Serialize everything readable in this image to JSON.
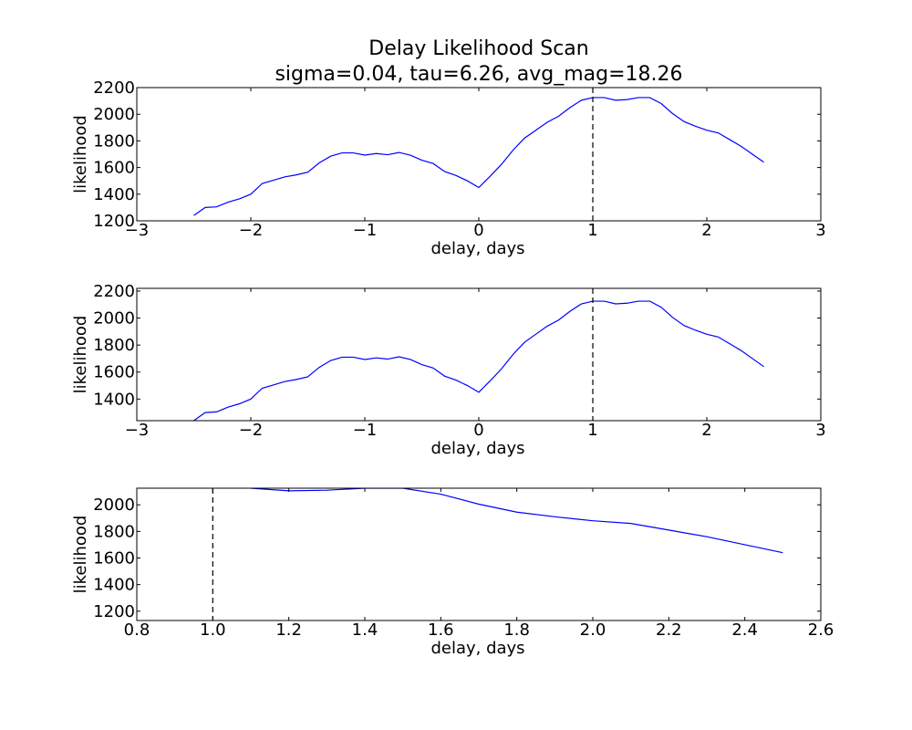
{
  "chart_data": [
    {
      "type": "line",
      "title": "Delay Likelihood Scan",
      "subtitle": "sigma=0.04, tau=6.26, avg_mag=18.26",
      "xlabel": "delay, days",
      "ylabel": "likelihood",
      "xlim": [
        -3,
        3
      ],
      "ylim": [
        1200,
        2200
      ],
      "xticks": [
        -3,
        -2,
        -1,
        0,
        1,
        2,
        3
      ],
      "yticks": [
        1200,
        1400,
        1600,
        1800,
        2000,
        2200
      ],
      "xtick_labels": [
        "−3",
        "−2",
        "−1",
        "0",
        "1",
        "2",
        "3"
      ],
      "ytick_labels": [
        "1200",
        "1400",
        "1600",
        "1800",
        "2000",
        "2200"
      ],
      "marker_x": 1.0,
      "grid": false,
      "series": [
        {
          "color": "#0000ff",
          "x": [
            -2.5,
            -2.4,
            -2.3,
            -2.2,
            -2.1,
            -2.0,
            -1.9,
            -1.8,
            -1.7,
            -1.6,
            -1.5,
            -1.4,
            -1.3,
            -1.2,
            -1.1,
            -1.0,
            -0.9,
            -0.8,
            -0.7,
            -0.6,
            -0.5,
            -0.4,
            -0.3,
            -0.2,
            -0.1,
            0.0,
            0.1,
            0.2,
            0.3,
            0.4,
            0.5,
            0.6,
            0.7,
            0.8,
            0.9,
            1.0,
            1.1,
            1.2,
            1.3,
            1.4,
            1.5,
            1.6,
            1.7,
            1.8,
            1.9,
            2.0,
            2.1,
            2.2,
            2.3,
            2.4,
            2.5
          ],
          "y": [
            1240,
            1300,
            1305,
            1340,
            1365,
            1400,
            1480,
            1505,
            1530,
            1545,
            1565,
            1635,
            1685,
            1710,
            1710,
            1693,
            1705,
            1696,
            1713,
            1693,
            1655,
            1630,
            1570,
            1540,
            1500,
            1450,
            1535,
            1625,
            1730,
            1820,
            1880,
            1940,
            1985,
            2050,
            2105,
            2125,
            2125,
            2105,
            2110,
            2125,
            2125,
            2080,
            2005,
            1945,
            1910,
            1880,
            1860,
            1810,
            1760,
            1700,
            1640
          ]
        }
      ]
    },
    {
      "type": "line",
      "title": "",
      "xlabel": "delay, days",
      "ylabel": "likelihood",
      "xlim": [
        -3,
        3
      ],
      "ylim": [
        1240,
        2220
      ],
      "xticks": [
        -3,
        -2,
        -1,
        0,
        1,
        2,
        3
      ],
      "yticks": [
        1400,
        1600,
        1800,
        2000,
        2200
      ],
      "xtick_labels": [
        "−3",
        "−2",
        "−1",
        "0",
        "1",
        "2",
        "3"
      ],
      "ytick_labels": [
        "1400",
        "1600",
        "1800",
        "2000",
        "2200"
      ],
      "marker_x": 1.0,
      "grid": false,
      "series": [
        {
          "color": "#0000ff",
          "x": [
            -2.5,
            -2.4,
            -2.3,
            -2.2,
            -2.1,
            -2.0,
            -1.9,
            -1.8,
            -1.7,
            -1.6,
            -1.5,
            -1.4,
            -1.3,
            -1.2,
            -1.1,
            -1.0,
            -0.9,
            -0.8,
            -0.7,
            -0.6,
            -0.5,
            -0.4,
            -0.3,
            -0.2,
            -0.1,
            0.0,
            0.1,
            0.2,
            0.3,
            0.4,
            0.5,
            0.6,
            0.7,
            0.8,
            0.9,
            1.0,
            1.1,
            1.2,
            1.3,
            1.4,
            1.5,
            1.6,
            1.7,
            1.8,
            1.9,
            2.0,
            2.1,
            2.2,
            2.3,
            2.4,
            2.5
          ],
          "y": [
            1240,
            1300,
            1305,
            1340,
            1365,
            1400,
            1480,
            1505,
            1530,
            1545,
            1565,
            1635,
            1685,
            1710,
            1710,
            1693,
            1705,
            1696,
            1713,
            1693,
            1655,
            1630,
            1570,
            1540,
            1500,
            1450,
            1535,
            1625,
            1730,
            1820,
            1880,
            1940,
            1985,
            2050,
            2105,
            2125,
            2125,
            2105,
            2110,
            2125,
            2125,
            2080,
            2005,
            1945,
            1910,
            1880,
            1860,
            1810,
            1760,
            1700,
            1640
          ]
        }
      ]
    },
    {
      "type": "line",
      "title": "",
      "xlabel": "delay, days",
      "ylabel": "likelihood",
      "xlim": [
        0.8,
        2.6
      ],
      "ylim": [
        1130,
        2125
      ],
      "xticks": [
        0.8,
        1.0,
        1.2,
        1.4,
        1.6,
        1.8,
        2.0,
        2.2,
        2.4,
        2.6
      ],
      "yticks": [
        1200,
        1400,
        1600,
        1800,
        2000
      ],
      "xtick_labels": [
        "0.8",
        "1.0",
        "1.2",
        "1.4",
        "1.6",
        "1.8",
        "2.0",
        "2.2",
        "2.4",
        "2.6"
      ],
      "ytick_labels": [
        "1200",
        "1400",
        "1600",
        "1800",
        "2000"
      ],
      "marker_x": 1.0,
      "grid": false,
      "series": [
        {
          "color": "#0000ff",
          "x": [
            1.1,
            1.2,
            1.3,
            1.4,
            1.5,
            1.6,
            1.7,
            1.8,
            1.9,
            2.0,
            2.1,
            2.2,
            2.3,
            2.4,
            2.5
          ],
          "y": [
            2125,
            2105,
            2110,
            2125,
            2125,
            2080,
            2005,
            1945,
            1910,
            1880,
            1860,
            1810,
            1760,
            1700,
            1640
          ]
        }
      ]
    }
  ]
}
